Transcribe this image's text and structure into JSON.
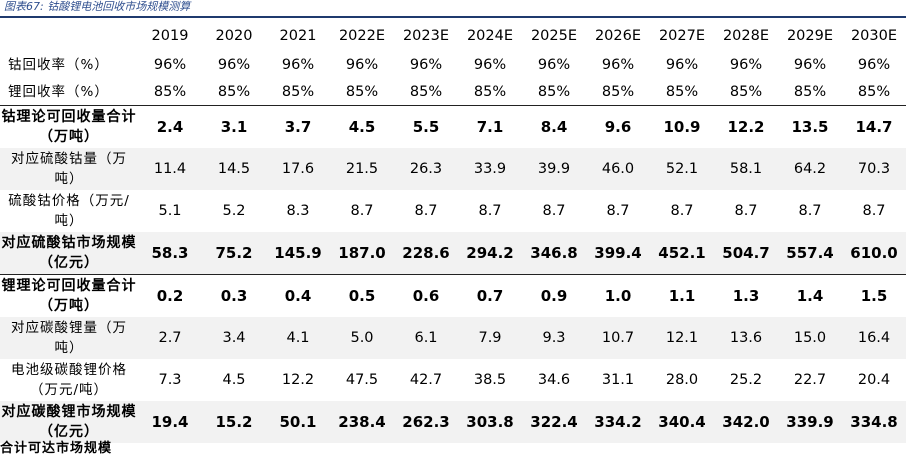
{
  "caption": "图表67:  钴酸锂电池回收市场规模测算",
  "years": [
    "2019",
    "2020",
    "2021",
    "2022E",
    "2023E",
    "2024E",
    "2025E",
    "2026E",
    "2027E",
    "2028E",
    "2029E",
    "2030E"
  ],
  "rows": [
    {
      "label": "钴回收率（%）",
      "values": [
        "96%",
        "96%",
        "96%",
        "96%",
        "96%",
        "96%",
        "96%",
        "96%",
        "96%",
        "96%",
        "96%",
        "96%"
      ]
    },
    {
      "label": "锂回收率（%）",
      "values": [
        "85%",
        "85%",
        "85%",
        "85%",
        "85%",
        "85%",
        "85%",
        "85%",
        "85%",
        "85%",
        "85%",
        "85%"
      ]
    },
    {
      "label": "钴理论可回收量合计（万吨）",
      "values": [
        "2.4",
        "3.1",
        "3.7",
        "4.5",
        "5.5",
        "7.1",
        "8.4",
        "9.6",
        "10.9",
        "12.2",
        "13.5",
        "14.7"
      ]
    },
    {
      "label": "对应硫酸钴量（万吨）",
      "values": [
        "11.4",
        "14.5",
        "17.6",
        "21.5",
        "26.3",
        "33.9",
        "39.9",
        "46.0",
        "52.1",
        "58.1",
        "64.2",
        "70.3"
      ]
    },
    {
      "label": "硫酸钴价格（万元/吨）",
      "values": [
        "5.1",
        "5.2",
        "8.3",
        "8.7",
        "8.7",
        "8.7",
        "8.7",
        "8.7",
        "8.7",
        "8.7",
        "8.7",
        "8.7"
      ]
    },
    {
      "label": "对应硫酸钴市场规模（亿元）",
      "values": [
        "58.3",
        "75.2",
        "145.9",
        "187.0",
        "228.6",
        "294.2",
        "346.8",
        "399.4",
        "452.1",
        "504.7",
        "557.4",
        "610.0"
      ]
    },
    {
      "label": "锂理论可回收量合计（万吨）",
      "values": [
        "0.2",
        "0.3",
        "0.4",
        "0.5",
        "0.6",
        "0.7",
        "0.9",
        "1.0",
        "1.1",
        "1.3",
        "1.4",
        "1.5"
      ]
    },
    {
      "label": "对应碳酸锂量（万吨）",
      "values": [
        "2.7",
        "3.4",
        "4.1",
        "5.0",
        "6.1",
        "7.9",
        "9.3",
        "10.7",
        "12.1",
        "13.6",
        "15.0",
        "16.4"
      ]
    },
    {
      "label": "电池级碳酸锂价格（万元/吨）",
      "values": [
        "7.3",
        "4.5",
        "12.2",
        "47.5",
        "42.7",
        "38.5",
        "34.6",
        "31.1",
        "28.0",
        "25.2",
        "22.7",
        "20.4"
      ]
    },
    {
      "label": "对应碳酸锂市场规模（亿元）",
      "values": [
        "19.4",
        "15.2",
        "50.1",
        "238.4",
        "262.3",
        "303.8",
        "322.4",
        "334.2",
        "340.4",
        "342.0",
        "339.9",
        "334.8"
      ]
    }
  ],
  "footer_partial": "合计可达市场规模"
}
